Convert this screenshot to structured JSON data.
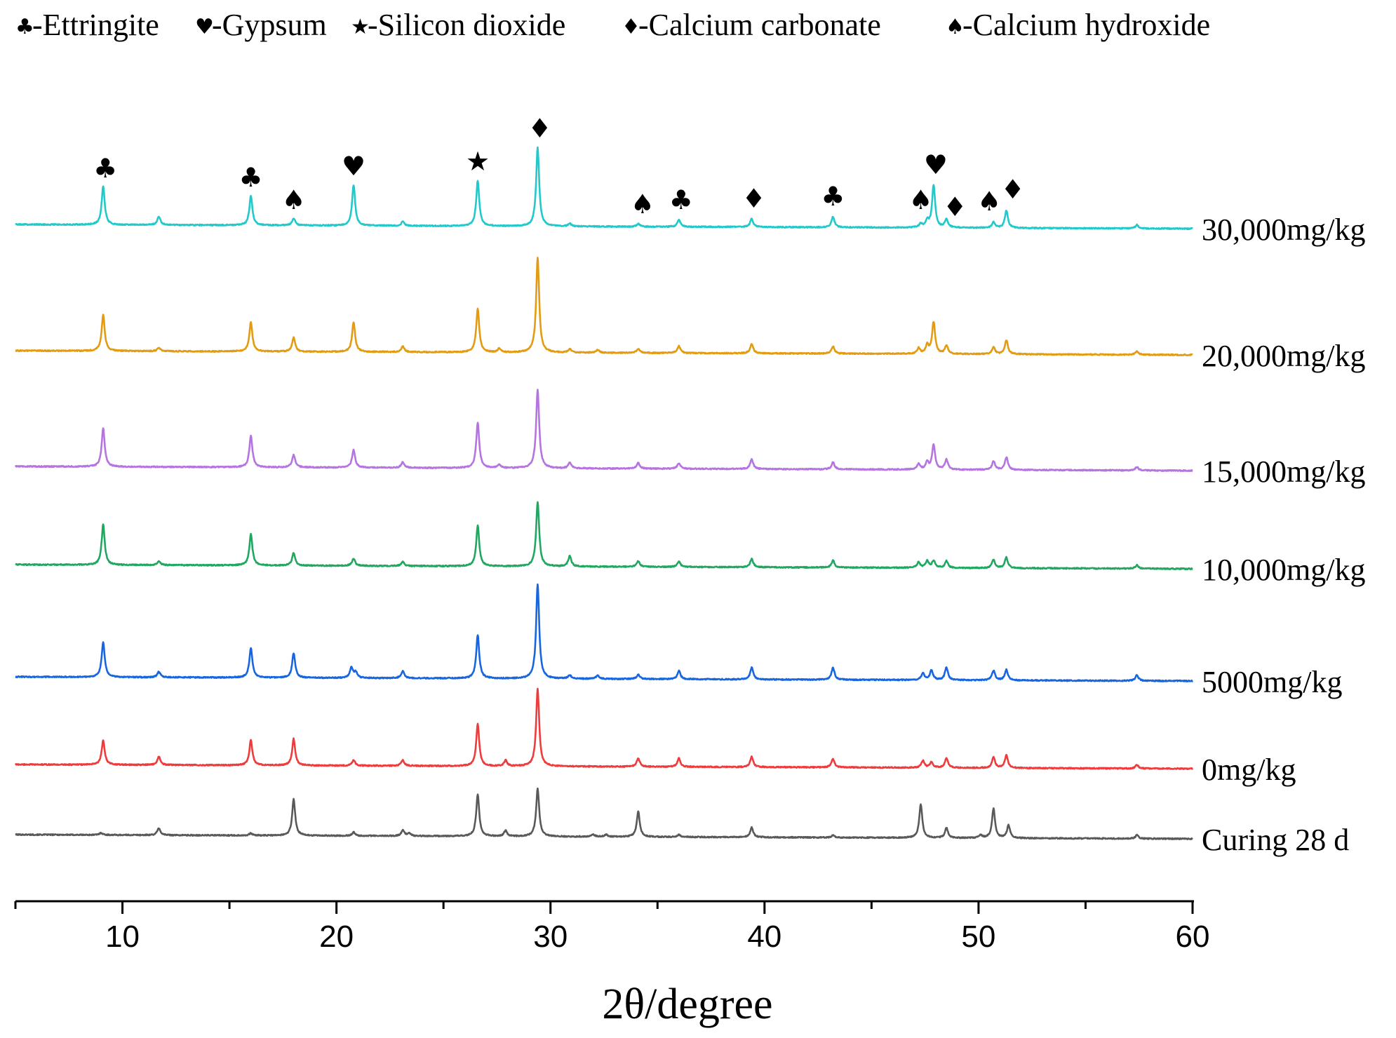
{
  "chart_data": {
    "type": "line",
    "title": "",
    "xlabel": "2θ/degree",
    "ylabel": "",
    "xlim": [
      5,
      60
    ],
    "xticks": [
      10,
      20,
      30,
      40,
      50,
      60
    ],
    "grid": false,
    "legend_position": "top",
    "legend": [
      {
        "symbol": "♣",
        "label": "-Ettringite"
      },
      {
        "symbol": "♥",
        "label": "-Gypsum"
      },
      {
        "symbol": "★",
        "label": "-Silicon dioxide"
      },
      {
        "symbol": "♦",
        "label": "-Calcium carbonate"
      },
      {
        "symbol": "♠",
        "label": "-Calcium hydroxide"
      }
    ],
    "series": [
      {
        "name": "Curing 28 d",
        "color": "#595959",
        "baseline": 0,
        "peaks": [
          [
            9.0,
            3
          ],
          [
            11.7,
            10
          ],
          [
            16.0,
            3
          ],
          [
            18.0,
            52
          ],
          [
            20.8,
            5
          ],
          [
            23.1,
            8
          ],
          [
            23.4,
            4
          ],
          [
            26.6,
            60
          ],
          [
            27.9,
            8
          ],
          [
            29.4,
            68
          ],
          [
            32.0,
            3
          ],
          [
            32.6,
            3
          ],
          [
            34.1,
            36
          ],
          [
            36.0,
            3
          ],
          [
            39.4,
            14
          ],
          [
            43.2,
            3
          ],
          [
            47.3,
            48
          ],
          [
            48.5,
            14
          ],
          [
            50.1,
            4
          ],
          [
            50.7,
            42
          ],
          [
            51.4,
            18
          ],
          [
            57.4,
            5
          ]
        ]
      },
      {
        "name": "0mg/kg",
        "color": "#ef3b3b",
        "baseline": 100,
        "peaks": [
          [
            9.1,
            35
          ],
          [
            11.7,
            12
          ],
          [
            16.0,
            36
          ],
          [
            18.0,
            38
          ],
          [
            20.8,
            8
          ],
          [
            23.1,
            8
          ],
          [
            26.6,
            60
          ],
          [
            27.9,
            8
          ],
          [
            29.4,
            110
          ],
          [
            34.1,
            12
          ],
          [
            36.0,
            12
          ],
          [
            39.4,
            15
          ],
          [
            43.2,
            12
          ],
          [
            47.4,
            10
          ],
          [
            47.8,
            8
          ],
          [
            48.5,
            14
          ],
          [
            50.7,
            15
          ],
          [
            51.3,
            18
          ],
          [
            57.4,
            5
          ]
        ]
      },
      {
        "name": "5000mg/kg",
        "color": "#1766e0",
        "baseline": 225,
        "peaks": [
          [
            9.1,
            50
          ],
          [
            11.7,
            8
          ],
          [
            16.0,
            42
          ],
          [
            18.0,
            35
          ],
          [
            20.7,
            15
          ],
          [
            20.9,
            8
          ],
          [
            23.1,
            10
          ],
          [
            26.6,
            62
          ],
          [
            29.4,
            135
          ],
          [
            30.9,
            5
          ],
          [
            32.2,
            5
          ],
          [
            34.1,
            6
          ],
          [
            36.0,
            12
          ],
          [
            39.4,
            17
          ],
          [
            43.2,
            17
          ],
          [
            47.4,
            10
          ],
          [
            47.8,
            14
          ],
          [
            48.5,
            18
          ],
          [
            50.7,
            14
          ],
          [
            51.3,
            15
          ],
          [
            57.4,
            8
          ]
        ]
      },
      {
        "name": "10,000mg/kg",
        "color": "#20a861",
        "baseline": 385,
        "peaks": [
          [
            9.1,
            58
          ],
          [
            11.7,
            6
          ],
          [
            16.0,
            45
          ],
          [
            18.0,
            18
          ],
          [
            20.8,
            10
          ],
          [
            23.1,
            6
          ],
          [
            26.6,
            58
          ],
          [
            29.4,
            92
          ],
          [
            30.9,
            15
          ],
          [
            34.1,
            8
          ],
          [
            36.0,
            8
          ],
          [
            39.4,
            12
          ],
          [
            43.2,
            10
          ],
          [
            47.2,
            8
          ],
          [
            47.6,
            10
          ],
          [
            47.9,
            10
          ],
          [
            48.5,
            10
          ],
          [
            50.7,
            12
          ],
          [
            51.3,
            15
          ],
          [
            57.4,
            5
          ]
        ]
      },
      {
        "name": "15,000mg/kg",
        "color": "#b574e0",
        "baseline": 525,
        "peaks": [
          [
            9.1,
            55
          ],
          [
            16.0,
            45
          ],
          [
            18.0,
            18
          ],
          [
            20.8,
            25
          ],
          [
            23.1,
            8
          ],
          [
            26.6,
            65
          ],
          [
            27.6,
            5
          ],
          [
            29.4,
            112
          ],
          [
            30.9,
            8
          ],
          [
            34.1,
            8
          ],
          [
            36.0,
            8
          ],
          [
            39.4,
            14
          ],
          [
            43.2,
            10
          ],
          [
            47.2,
            8
          ],
          [
            47.6,
            10
          ],
          [
            47.9,
            35
          ],
          [
            48.5,
            14
          ],
          [
            50.7,
            12
          ],
          [
            51.3,
            18
          ],
          [
            57.4,
            5
          ]
        ]
      },
      {
        "name": "20,000mg/kg",
        "color": "#e39c12",
        "baseline": 690,
        "peaks": [
          [
            9.1,
            52
          ],
          [
            11.7,
            5
          ],
          [
            16.0,
            42
          ],
          [
            18.0,
            20
          ],
          [
            20.8,
            42
          ],
          [
            23.1,
            8
          ],
          [
            26.6,
            62
          ],
          [
            27.6,
            5
          ],
          [
            29.4,
            135
          ],
          [
            30.9,
            5
          ],
          [
            32.2,
            4
          ],
          [
            34.1,
            6
          ],
          [
            36.0,
            10
          ],
          [
            39.4,
            13
          ],
          [
            43.2,
            10
          ],
          [
            47.2,
            8
          ],
          [
            47.6,
            12
          ],
          [
            47.9,
            45
          ],
          [
            48.5,
            12
          ],
          [
            50.7,
            10
          ],
          [
            51.3,
            20
          ],
          [
            57.4,
            5
          ]
        ]
      },
      {
        "name": "30,000mg/kg",
        "color": "#22c9cb",
        "baseline": 870,
        "peaks": [
          [
            9.1,
            55
          ],
          [
            11.7,
            12
          ],
          [
            16.0,
            42
          ],
          [
            18.0,
            10
          ],
          [
            20.8,
            58
          ],
          [
            23.1,
            6
          ],
          [
            26.6,
            65
          ],
          [
            29.4,
            112
          ],
          [
            30.9,
            4
          ],
          [
            34.1,
            4
          ],
          [
            36.0,
            10
          ],
          [
            39.4,
            12
          ],
          [
            43.2,
            15
          ],
          [
            47.3,
            5
          ],
          [
            47.6,
            10
          ],
          [
            47.9,
            60
          ],
          [
            48.5,
            12
          ],
          [
            50.7,
            8
          ],
          [
            51.3,
            25
          ],
          [
            57.4,
            5
          ]
        ]
      }
    ],
    "annotations": [
      {
        "series": "30,000mg/kg",
        "x": 9.2,
        "symbol": "♣"
      },
      {
        "series": "30,000mg/kg",
        "x": 16.0,
        "symbol": "♣"
      },
      {
        "series": "30,000mg/kg",
        "x": 18.0,
        "symbol": "♠"
      },
      {
        "series": "30,000mg/kg",
        "x": 20.8,
        "symbol": "♥"
      },
      {
        "series": "30,000mg/kg",
        "x": 26.6,
        "symbol": "★"
      },
      {
        "series": "30,000mg/kg",
        "x": 29.5,
        "symbol": "♦"
      },
      {
        "series": "30,000mg/kg",
        "x": 34.3,
        "symbol": "♠"
      },
      {
        "series": "30,000mg/kg",
        "x": 36.1,
        "symbol": "♣"
      },
      {
        "series": "30,000mg/kg",
        "x": 39.5,
        "symbol": "♦"
      },
      {
        "series": "30,000mg/kg",
        "x": 43.2,
        "symbol": "♣"
      },
      {
        "series": "30,000mg/kg",
        "x": 47.3,
        "symbol": "♠"
      },
      {
        "series": "30,000mg/kg",
        "x": 48.0,
        "symbol": "♥"
      },
      {
        "series": "30,000mg/kg",
        "x": 48.9,
        "symbol": "♦"
      },
      {
        "series": "30,000mg/kg",
        "x": 50.5,
        "symbol": "♠"
      },
      {
        "series": "30,000mg/kg",
        "x": 51.6,
        "symbol": "♦"
      }
    ]
  }
}
